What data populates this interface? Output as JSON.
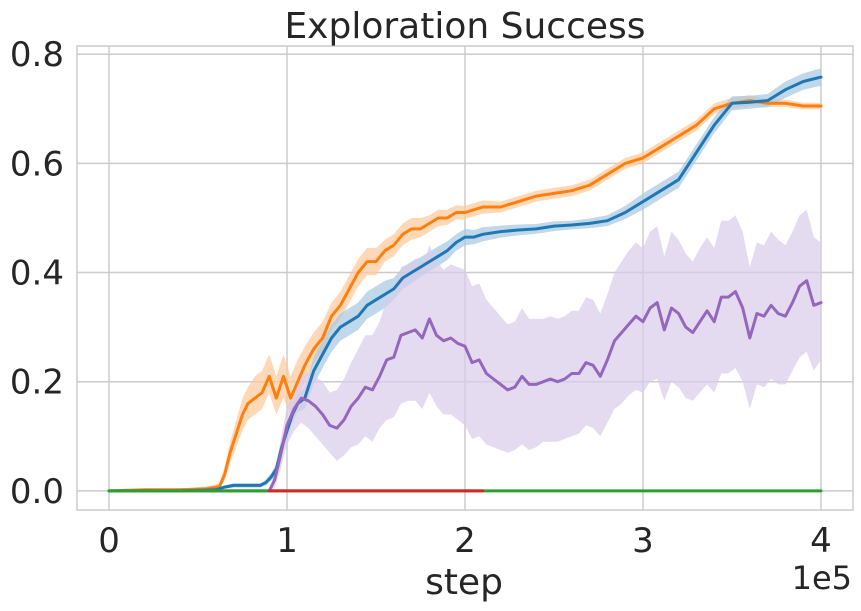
{
  "chart_data": {
    "type": "line",
    "title": "Exploration Success",
    "xlabel": "step",
    "x_offset_label": "1e5",
    "ylabel": "",
    "xlim": [
      -18000,
      418000
    ],
    "ylim": [
      -0.035,
      0.815
    ],
    "x_ticks": [
      0,
      100000,
      200000,
      300000,
      400000
    ],
    "x_tick_labels": [
      "0",
      "1",
      "2",
      "3",
      "4"
    ],
    "y_ticks": [
      0.0,
      0.2,
      0.4,
      0.6,
      0.8
    ],
    "y_tick_labels": [
      "0.0",
      "0.2",
      "0.4",
      "0.6",
      "0.8"
    ],
    "grid": true,
    "series": [
      {
        "color": "#ff7f0e",
        "band_color": "#ffc999",
        "x": [
          0,
          20000,
          40000,
          55000,
          62000,
          65000,
          68000,
          72000,
          75000,
          78000,
          82000,
          86000,
          90000,
          94000,
          98000,
          102000,
          106000,
          110000,
          115000,
          120000,
          125000,
          130000,
          135000,
          140000,
          145000,
          150000,
          155000,
          160000,
          165000,
          170000,
          175000,
          180000,
          185000,
          190000,
          195000,
          200000,
          210000,
          220000,
          230000,
          240000,
          250000,
          260000,
          270000,
          280000,
          290000,
          300000,
          310000,
          320000,
          330000,
          340000,
          350000,
          360000,
          370000,
          380000,
          390000,
          400000
        ],
        "y": [
          0,
          0.002,
          0.002,
          0.004,
          0.008,
          0.03,
          0.07,
          0.11,
          0.14,
          0.16,
          0.17,
          0.18,
          0.21,
          0.17,
          0.21,
          0.17,
          0.2,
          0.23,
          0.26,
          0.28,
          0.32,
          0.34,
          0.37,
          0.4,
          0.42,
          0.42,
          0.44,
          0.45,
          0.47,
          0.48,
          0.48,
          0.49,
          0.5,
          0.5,
          0.51,
          0.51,
          0.52,
          0.52,
          0.53,
          0.54,
          0.545,
          0.55,
          0.56,
          0.58,
          0.6,
          0.61,
          0.63,
          0.65,
          0.67,
          0.7,
          0.71,
          0.715,
          0.71,
          0.71,
          0.705,
          0.705
        ],
        "lower": [
          0,
          0,
          0,
          0.001,
          0.004,
          0.02,
          0.05,
          0.085,
          0.11,
          0.13,
          0.14,
          0.15,
          0.18,
          0.14,
          0.17,
          0.14,
          0.17,
          0.2,
          0.235,
          0.255,
          0.295,
          0.315,
          0.345,
          0.375,
          0.395,
          0.395,
          0.42,
          0.43,
          0.45,
          0.46,
          0.465,
          0.475,
          0.485,
          0.487,
          0.497,
          0.498,
          0.508,
          0.51,
          0.52,
          0.53,
          0.535,
          0.54,
          0.55,
          0.57,
          0.59,
          0.6,
          0.62,
          0.64,
          0.66,
          0.69,
          0.7,
          0.705,
          0.703,
          0.703,
          0.699,
          0.699
        ],
        "upper": [
          0,
          0.004,
          0.004,
          0.008,
          0.014,
          0.045,
          0.09,
          0.135,
          0.17,
          0.19,
          0.21,
          0.22,
          0.25,
          0.21,
          0.25,
          0.21,
          0.24,
          0.265,
          0.29,
          0.31,
          0.345,
          0.365,
          0.395,
          0.425,
          0.445,
          0.445,
          0.46,
          0.47,
          0.49,
          0.5,
          0.5,
          0.505,
          0.515,
          0.515,
          0.523,
          0.522,
          0.532,
          0.53,
          0.54,
          0.55,
          0.555,
          0.56,
          0.57,
          0.59,
          0.61,
          0.62,
          0.64,
          0.66,
          0.68,
          0.71,
          0.72,
          0.725,
          0.717,
          0.717,
          0.711,
          0.711
        ]
      },
      {
        "color": "#1f77b4",
        "band_color": "#a6c8e3",
        "x": [
          0,
          40000,
          60000,
          65000,
          70000,
          75000,
          80000,
          85000,
          88000,
          91000,
          94000,
          97000,
          100000,
          103000,
          106000,
          110000,
          115000,
          120000,
          125000,
          130000,
          135000,
          140000,
          145000,
          150000,
          155000,
          160000,
          165000,
          170000,
          175000,
          180000,
          185000,
          190000,
          195000,
          200000,
          205000,
          210000,
          220000,
          230000,
          240000,
          250000,
          260000,
          270000,
          280000,
          290000,
          300000,
          310000,
          320000,
          330000,
          340000,
          350000,
          360000,
          370000,
          380000,
          390000,
          400000
        ],
        "y": [
          0,
          0,
          0.002,
          0.007,
          0.01,
          0.01,
          0.01,
          0.01,
          0.015,
          0.025,
          0.04,
          0.08,
          0.11,
          0.14,
          0.16,
          0.17,
          0.22,
          0.25,
          0.28,
          0.3,
          0.31,
          0.32,
          0.34,
          0.35,
          0.36,
          0.37,
          0.39,
          0.4,
          0.41,
          0.42,
          0.43,
          0.44,
          0.455,
          0.465,
          0.465,
          0.47,
          0.475,
          0.478,
          0.48,
          0.485,
          0.487,
          0.49,
          0.495,
          0.51,
          0.53,
          0.55,
          0.57,
          0.62,
          0.67,
          0.71,
          0.712,
          0.715,
          0.735,
          0.75,
          0.758
        ],
        "lower": [
          0,
          0,
          0,
          0.004,
          0.006,
          0.006,
          0.006,
          0.006,
          0.01,
          0.018,
          0.03,
          0.065,
          0.095,
          0.125,
          0.145,
          0.15,
          0.195,
          0.225,
          0.255,
          0.275,
          0.285,
          0.295,
          0.315,
          0.325,
          0.335,
          0.35,
          0.37,
          0.38,
          0.392,
          0.402,
          0.412,
          0.423,
          0.44,
          0.45,
          0.452,
          0.457,
          0.464,
          0.468,
          0.471,
          0.476,
          0.479,
          0.481,
          0.485,
          0.498,
          0.515,
          0.535,
          0.555,
          0.605,
          0.655,
          0.697,
          0.7,
          0.703,
          0.72,
          0.735,
          0.742
        ],
        "upper": [
          0,
          0,
          0.004,
          0.01,
          0.014,
          0.014,
          0.014,
          0.014,
          0.02,
          0.032,
          0.05,
          0.095,
          0.125,
          0.155,
          0.175,
          0.19,
          0.245,
          0.275,
          0.305,
          0.325,
          0.335,
          0.345,
          0.365,
          0.375,
          0.385,
          0.39,
          0.41,
          0.42,
          0.428,
          0.438,
          0.448,
          0.457,
          0.47,
          0.48,
          0.478,
          0.483,
          0.486,
          0.488,
          0.489,
          0.494,
          0.495,
          0.499,
          0.505,
          0.522,
          0.545,
          0.565,
          0.585,
          0.635,
          0.685,
          0.723,
          0.724,
          0.727,
          0.75,
          0.765,
          0.774
        ]
      },
      {
        "color": "#9467bd",
        "band_color": "#d9cceb",
        "x": [
          0,
          90000,
          93000,
          96000,
          100000,
          104000,
          108000,
          112000,
          116000,
          120000,
          124000,
          128000,
          132000,
          136000,
          140000,
          144000,
          148000,
          152000,
          156000,
          160000,
          164000,
          168000,
          172000,
          176000,
          180000,
          184000,
          188000,
          192000,
          196000,
          200000,
          204000,
          208000,
          212000,
          216000,
          220000,
          224000,
          228000,
          232000,
          236000,
          240000,
          244000,
          248000,
          252000,
          256000,
          260000,
          264000,
          268000,
          272000,
          276000,
          280000,
          284000,
          288000,
          292000,
          296000,
          300000,
          304000,
          308000,
          312000,
          316000,
          320000,
          324000,
          328000,
          332000,
          336000,
          340000,
          344000,
          348000,
          352000,
          356000,
          360000,
          364000,
          368000,
          372000,
          376000,
          380000,
          384000,
          388000,
          392000,
          396000,
          400000
        ],
        "y": [
          0,
          0,
          0.02,
          0.06,
          0.12,
          0.15,
          0.17,
          0.165,
          0.155,
          0.14,
          0.12,
          0.115,
          0.13,
          0.155,
          0.17,
          0.19,
          0.185,
          0.21,
          0.24,
          0.245,
          0.285,
          0.29,
          0.295,
          0.28,
          0.315,
          0.285,
          0.275,
          0.28,
          0.27,
          0.265,
          0.235,
          0.24,
          0.215,
          0.205,
          0.195,
          0.185,
          0.19,
          0.21,
          0.195,
          0.195,
          0.2,
          0.205,
          0.2,
          0.205,
          0.215,
          0.215,
          0.235,
          0.23,
          0.21,
          0.24,
          0.275,
          0.29,
          0.305,
          0.32,
          0.31,
          0.335,
          0.345,
          0.295,
          0.335,
          0.325,
          0.3,
          0.29,
          0.31,
          0.33,
          0.31,
          0.355,
          0.355,
          0.365,
          0.335,
          0.28,
          0.325,
          0.32,
          0.34,
          0.325,
          0.32,
          0.345,
          0.375,
          0.385,
          0.34,
          0.345
        ],
        "lower": [
          0,
          0,
          0.005,
          0.035,
          0.085,
          0.11,
          0.125,
          0.115,
          0.1,
          0.085,
          0.07,
          0.055,
          0.065,
          0.08,
          0.085,
          0.1,
          0.09,
          0.115,
          0.13,
          0.135,
          0.16,
          0.165,
          0.165,
          0.15,
          0.18,
          0.155,
          0.14,
          0.14,
          0.13,
          0.12,
          0.095,
          0.1,
          0.085,
          0.08,
          0.075,
          0.07,
          0.075,
          0.085,
          0.075,
          0.08,
          0.09,
          0.09,
          0.09,
          0.095,
          0.1,
          0.105,
          0.12,
          0.115,
          0.1,
          0.125,
          0.15,
          0.16,
          0.175,
          0.185,
          0.18,
          0.2,
          0.205,
          0.165,
          0.2,
          0.19,
          0.17,
          0.165,
          0.18,
          0.195,
          0.18,
          0.215,
          0.215,
          0.225,
          0.2,
          0.15,
          0.195,
          0.19,
          0.205,
          0.195,
          0.195,
          0.22,
          0.245,
          0.255,
          0.22,
          0.24
        ],
        "upper": [
          0,
          0,
          0.035,
          0.085,
          0.155,
          0.19,
          0.215,
          0.215,
          0.21,
          0.2,
          0.18,
          0.185,
          0.205,
          0.235,
          0.26,
          0.285,
          0.285,
          0.31,
          0.35,
          0.36,
          0.41,
          0.415,
          0.425,
          0.41,
          0.45,
          0.42,
          0.405,
          0.415,
          0.41,
          0.405,
          0.375,
          0.38,
          0.35,
          0.335,
          0.32,
          0.305,
          0.31,
          0.335,
          0.315,
          0.315,
          0.315,
          0.32,
          0.315,
          0.32,
          0.33,
          0.33,
          0.355,
          0.35,
          0.325,
          0.36,
          0.4,
          0.42,
          0.44,
          0.455,
          0.445,
          0.475,
          0.485,
          0.43,
          0.475,
          0.46,
          0.435,
          0.42,
          0.445,
          0.465,
          0.445,
          0.495,
          0.495,
          0.505,
          0.475,
          0.41,
          0.455,
          0.45,
          0.475,
          0.46,
          0.45,
          0.475,
          0.505,
          0.515,
          0.465,
          0.455
        ]
      },
      {
        "color": "#2ca02c",
        "x": [
          0,
          400000
        ],
        "y": [
          0,
          0
        ]
      },
      {
        "color": "#d62728",
        "x": [
          90000,
          210000
        ],
        "y": [
          0,
          0
        ]
      }
    ]
  }
}
